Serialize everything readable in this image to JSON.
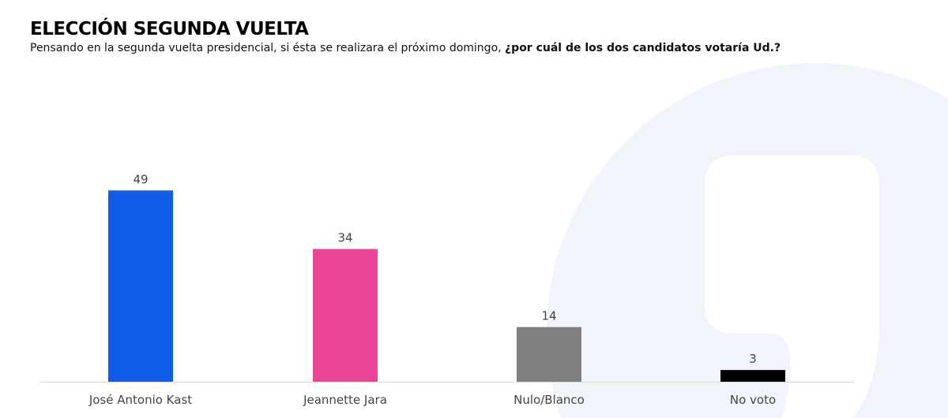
{
  "title": "ELECCIÓN SEGUNDA VUELTA",
  "subtitle": "Pensando en la segunda vuelta presidencial, si ésta se realizara el próximo domingo,",
  "subtitle_bold": "¿por cuál de los dos candidatos votaría Ud.?",
  "chart_data": {
    "type": "bar",
    "categories": [
      "José Antonio Kast",
      "Jeannette Jara",
      "Nulo/Blanco",
      "No voto"
    ],
    "values": [
      49,
      34,
      14,
      3
    ],
    "colors": [
      "#0f5ce6",
      "#ec4598",
      "#808080",
      "#000000"
    ],
    "ylim": [
      0,
      55
    ],
    "grid": false,
    "data_labels": true
  },
  "watermark_color": "#f2f4fc"
}
